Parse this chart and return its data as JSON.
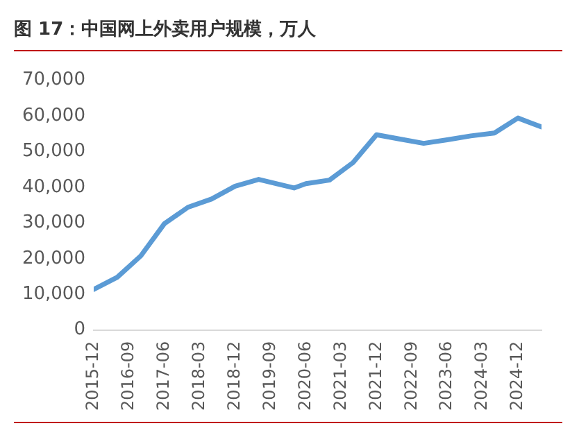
{
  "chart_data": {
    "type": "line",
    "title": "图 17：中国网上外卖用户规模，万人",
    "x": [
      "2015-12",
      "2016-06",
      "2016-12",
      "2017-06",
      "2017-12",
      "2018-06",
      "2018-12",
      "2019-06",
      "2020-03",
      "2020-06",
      "2020-12",
      "2021-06",
      "2021-12",
      "2022-06",
      "2022-12",
      "2023-06",
      "2023-12",
      "2024-06",
      "2024-12",
      "2025-06"
    ],
    "series": [
      {
        "color": "#5b9bd5",
        "values": [
          11400,
          14800,
          20800,
          29800,
          34400,
          36700,
          40300,
          42200,
          39800,
          41000,
          42000,
          46900,
          54700,
          53500,
          52300,
          53300,
          54400,
          55200,
          59400,
          56900
        ]
      }
    ],
    "xlim": [
      "2015-12",
      "2025-06"
    ],
    "xticks": [
      "2015-12",
      "2016-09",
      "2017-06",
      "2018-03",
      "2018-12",
      "2019-09",
      "2020-06",
      "2021-03",
      "2021-12",
      "2022-09",
      "2023-06",
      "2024-03",
      "2024-12"
    ],
    "ylim": [
      0,
      70000
    ],
    "yticks": [
      {
        "value": 0,
        "label": "0"
      },
      {
        "value": 10000,
        "label": "10,000"
      },
      {
        "value": 20000,
        "label": "20,000"
      },
      {
        "value": 30000,
        "label": "30,000"
      },
      {
        "value": 40000,
        "label": "40,000"
      },
      {
        "value": 50000,
        "label": "50,000"
      },
      {
        "value": 60000,
        "label": "60,000"
      },
      {
        "value": 70000,
        "label": "70,000"
      }
    ],
    "grid": false,
    "legend": false,
    "marker": "none",
    "line_style": "solid"
  }
}
